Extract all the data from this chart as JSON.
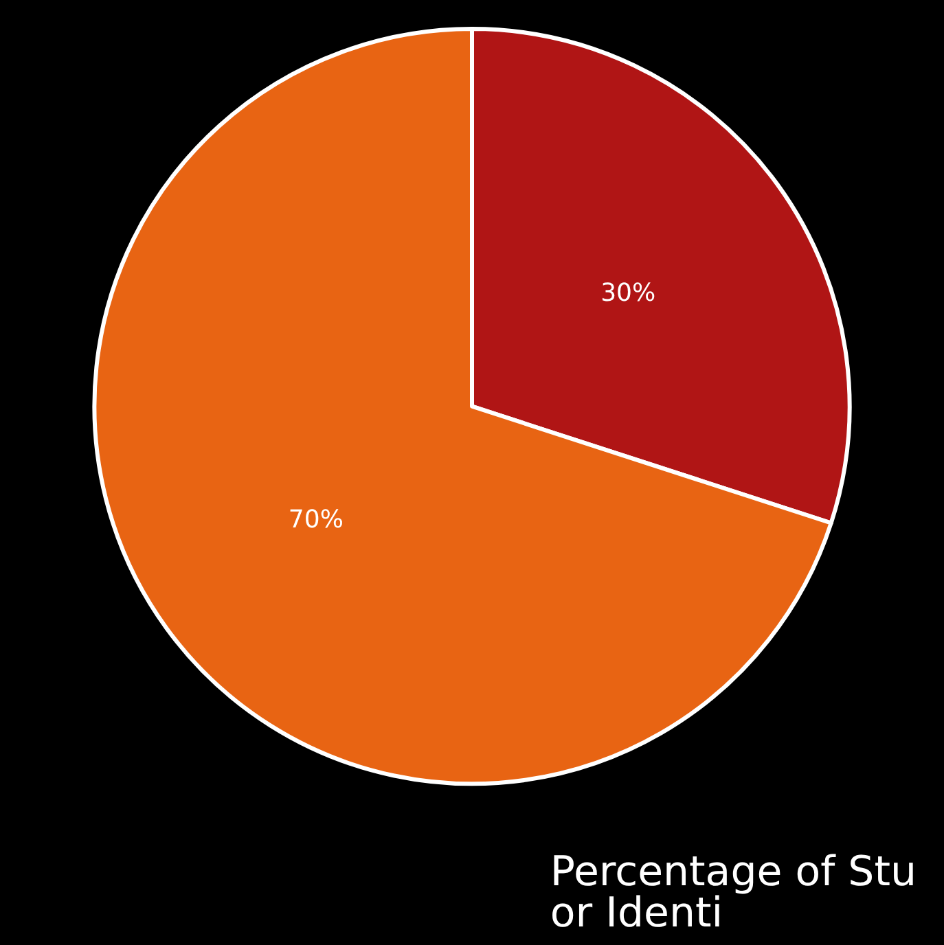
{
  "chart_data": {
    "type": "pie",
    "categories": [
      null,
      null
    ],
    "values": [
      30,
      70
    ],
    "colors": [
      "#b01515",
      "#e86413"
    ],
    "value_labels": [
      "30%",
      "70%"
    ],
    "annotations": [
      "Percentage of Stu\nor Identi"
    ]
  }
}
